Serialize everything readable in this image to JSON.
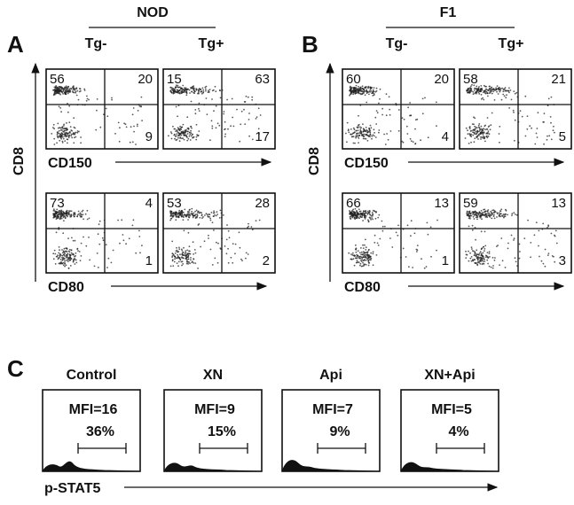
{
  "panels": [
    {
      "label": "A",
      "group": "NOD",
      "columns": [
        "Tg-",
        "Tg+"
      ],
      "y_axis": "CD8",
      "rows": [
        {
          "x_axis": "CD150",
          "plots": [
            {
              "quadrants": [
                56,
                20,
                9
              ]
            },
            {
              "quadrants": [
                15,
                63,
                17
              ]
            }
          ]
        },
        {
          "x_axis": "CD80",
          "plots": [
            {
              "quadrants": [
                73,
                4,
                1
              ]
            },
            {
              "quadrants": [
                53,
                28,
                2
              ]
            }
          ]
        }
      ]
    },
    {
      "label": "B",
      "group": "F1",
      "columns": [
        "Tg-",
        "Tg+"
      ],
      "y_axis": "CD8",
      "rows": [
        {
          "x_axis": "CD150",
          "plots": [
            {
              "quadrants": [
                60,
                20,
                4
              ]
            },
            {
              "quadrants": [
                58,
                21,
                5
              ]
            }
          ]
        },
        {
          "x_axis": "CD80",
          "plots": [
            {
              "quadrants": [
                66,
                13,
                1
              ]
            },
            {
              "quadrants": [
                59,
                13,
                3
              ]
            }
          ]
        }
      ]
    }
  ],
  "panel_c": {
    "label": "C",
    "x_axis": "p-STAT5",
    "histograms": [
      {
        "title": "Control",
        "mfi": "MFI=16",
        "percent": "36%"
      },
      {
        "title": "XN",
        "mfi": "MFI=9",
        "percent": "15%"
      },
      {
        "title": "Api",
        "mfi": "MFI=7",
        "percent": "9%"
      },
      {
        "title": "XN+Api",
        "mfi": "MFI=5",
        "percent": "4%"
      }
    ]
  }
}
